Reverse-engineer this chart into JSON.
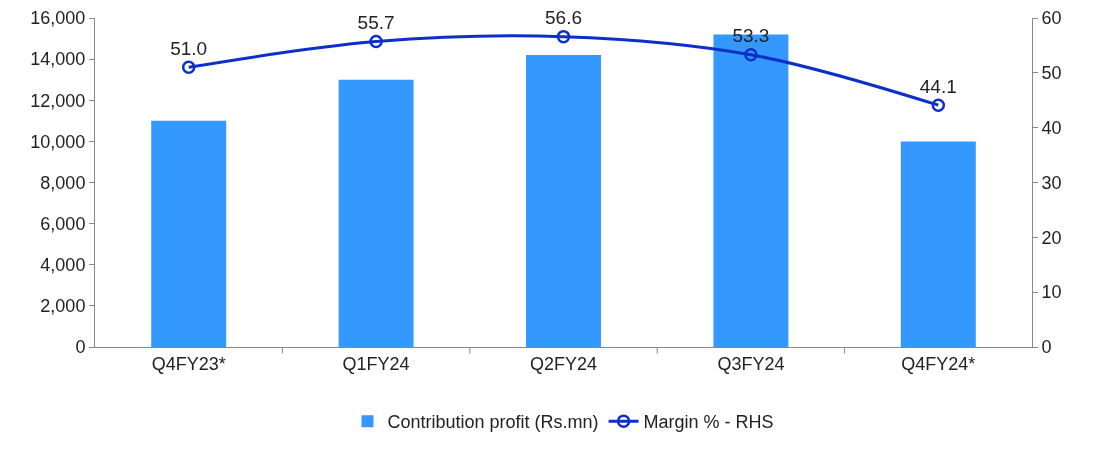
{
  "chart_data": {
    "type": "bar",
    "categories": [
      "Q4FY23*",
      "Q1FY24",
      "Q2FY24",
      "Q3FY24",
      "Q4FY24*"
    ],
    "series": [
      {
        "name": "Contribution profit (Rs.mn)",
        "color": "#3399ff",
        "values": [
          11000,
          13000,
          14200,
          15200,
          10000
        ]
      },
      {
        "name": "Margin % - RHS",
        "type": "line",
        "axis": "y2",
        "color": "#0d2fc9",
        "values": [
          51.0,
          55.7,
          56.6,
          53.3,
          44.1
        ],
        "value_labels": [
          "51.0",
          "55.7",
          "56.6",
          "53.3",
          "44.1"
        ],
        "marker": "circle"
      }
    ],
    "ylim": [
      0,
      16000
    ],
    "yticks": [
      {
        "value": 0,
        "label": "0"
      },
      {
        "value": 2000,
        "label": "2,000"
      },
      {
        "value": 4000,
        "label": "4,000"
      },
      {
        "value": 6000,
        "label": "6,000"
      },
      {
        "value": 8000,
        "label": "8,000"
      },
      {
        "value": 10000,
        "label": "10,000"
      },
      {
        "value": 12000,
        "label": "12,000"
      },
      {
        "value": 14000,
        "label": "14,000"
      },
      {
        "value": 16000,
        "label": "16,000"
      }
    ],
    "y2lim": [
      0,
      60
    ],
    "y2ticks": [
      0,
      10,
      20,
      30,
      40,
      50,
      60
    ],
    "grid": false,
    "legend": "bottom"
  }
}
